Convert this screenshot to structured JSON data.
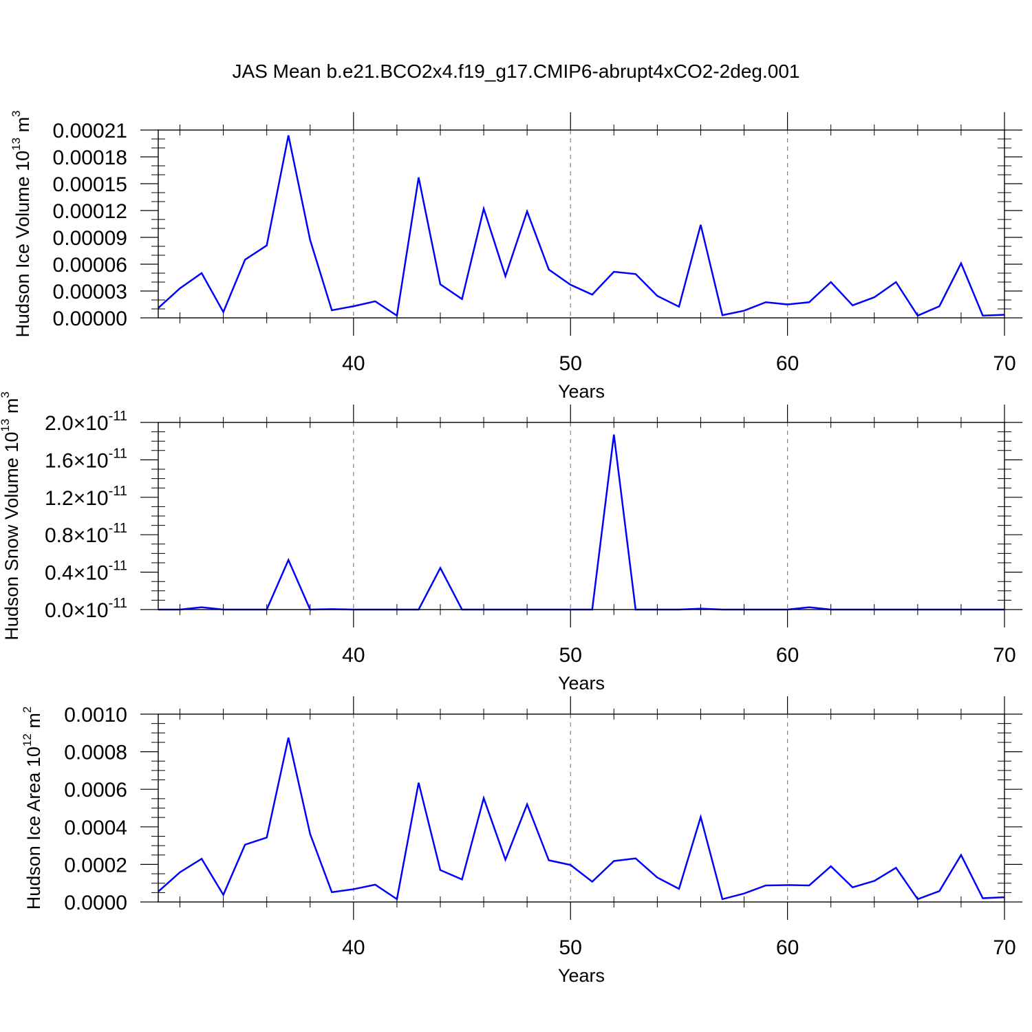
{
  "title": "JAS Mean b.e21.BCO2x4.f19_g17.CMIP6-abrupt4xCO2-2deg.001",
  "line_color": "#0000ff",
  "chart_data": [
    {
      "type": "line",
      "xlabel": "Years",
      "ylabel": "Hudson Ice Volume 10",
      "ylabel_exp": "13",
      "ylabel_unit": " m",
      "ylabel_unit_exp": "3",
      "xlim": [
        31,
        70
      ],
      "ylim": [
        0,
        0.00021
      ],
      "xticks": [
        40,
        50,
        60,
        70
      ],
      "yticks": [
        0,
        3e-05,
        6e-05,
        9e-05,
        0.00012,
        0.00015,
        0.00018,
        0.00021
      ],
      "ytick_labels": [
        "0.00000",
        "0.00003",
        "0.00006",
        "0.00009",
        "0.00012",
        "0.00015",
        "0.00018",
        "0.00021"
      ],
      "grid": "vertical dashed",
      "x": [
        31,
        32,
        33,
        34,
        35,
        36,
        37,
        38,
        39,
        40,
        41,
        42,
        43,
        44,
        45,
        46,
        47,
        48,
        49,
        50,
        51,
        52,
        53,
        54,
        55,
        56,
        57,
        58,
        59,
        60,
        61,
        62,
        63,
        64,
        65,
        66,
        67,
        68,
        69,
        70
      ],
      "series": [
        {
          "values": [
            1.1e-05,
            3.3e-05,
            5e-05,
            6.5e-06,
            6.5e-05,
            8.1e-05,
            0.000204,
            8.7e-05,
            8.5e-06,
            1.3e-05,
            1.85e-05,
            2.5e-06,
            0.000157,
            3.75e-05,
            2.1e-05,
            0.000122,
            4.65e-05,
            0.000119,
            5.4e-05,
            3.7e-05,
            2.6e-05,
            5.15e-05,
            4.9e-05,
            2.45e-05,
            1.25e-05,
            0.000104,
            3e-06,
            8e-06,
            1.75e-05,
            1.5e-05,
            1.75e-05,
            4e-05,
            1.4e-05,
            2.3e-05,
            4e-05,
            2.5e-06,
            1.3e-05,
            6.1e-05,
            2.5e-06,
            3.5e-06
          ]
        }
      ]
    },
    {
      "type": "line",
      "xlabel": "Years",
      "ylabel": "Hudson Snow Volume 10",
      "ylabel_exp": "13",
      "ylabel_unit": " m",
      "ylabel_unit_exp": "3",
      "xlim": [
        31,
        70
      ],
      "ylim": [
        0,
        2e-11
      ],
      "xticks": [
        40,
        50,
        60,
        70
      ],
      "yticks": [
        0,
        4e-12,
        8e-12,
        1.2e-11,
        1.6e-11,
        2e-11
      ],
      "ytick_labels": [
        "0.0",
        "0.4",
        "0.8",
        "1.2",
        "1.6",
        "2.0"
      ],
      "ytick_suffix": "×10",
      "ytick_exp": "-11",
      "grid": "vertical dashed",
      "x": [
        31,
        32,
        33,
        34,
        35,
        36,
        37,
        38,
        39,
        40,
        41,
        42,
        43,
        44,
        45,
        46,
        47,
        48,
        49,
        50,
        51,
        52,
        53,
        54,
        55,
        56,
        57,
        58,
        59,
        60,
        61,
        62,
        63,
        64,
        65,
        66,
        67,
        68,
        69,
        70
      ],
      "series": [
        {
          "values": [
            0,
            0,
            2.5e-13,
            0,
            0,
            0,
            5.3e-12,
            0,
            5e-14,
            0,
            0,
            0,
            0,
            4.45e-12,
            0,
            0,
            0,
            0,
            0,
            0,
            0,
            1.87e-11,
            0,
            0,
            0,
            1e-13,
            0,
            0,
            0,
            0,
            2.5e-13,
            0,
            0,
            0,
            0,
            0,
            0,
            0,
            0,
            0
          ]
        }
      ]
    },
    {
      "type": "line",
      "xlabel": "Years",
      "ylabel": "Hudson Ice Area 10",
      "ylabel_exp": "12",
      "ylabel_unit": " m",
      "ylabel_unit_exp": "2",
      "xlim": [
        31,
        70
      ],
      "ylim": [
        0,
        0.001
      ],
      "xticks": [
        40,
        50,
        60,
        70
      ],
      "yticks": [
        0,
        0.0002,
        0.0004,
        0.0006,
        0.0008,
        0.001
      ],
      "ytick_labels": [
        "0.0000",
        "0.0002",
        "0.0004",
        "0.0006",
        "0.0008",
        "0.0010"
      ],
      "grid": "vertical dashed",
      "x": [
        31,
        32,
        33,
        34,
        35,
        36,
        37,
        38,
        39,
        40,
        41,
        42,
        43,
        44,
        45,
        46,
        47,
        48,
        49,
        50,
        51,
        52,
        53,
        54,
        55,
        56,
        57,
        58,
        59,
        60,
        61,
        62,
        63,
        64,
        65,
        66,
        67,
        68,
        69,
        70
      ],
      "series": [
        {
          "values": [
            5.5e-05,
            0.000158,
            0.00023,
            3.8e-05,
            0.000305,
            0.000343,
            0.000875,
            0.000362,
            5.2e-05,
            6.8e-05,
            9.2e-05,
            1.5e-05,
            0.000635,
            0.00017,
            0.00012,
            0.000553,
            0.000225,
            0.00052,
            0.000222,
            0.000197,
            0.000108,
            0.000218,
            0.000232,
            0.00013,
            7e-05,
            0.000452,
            1.5e-05,
            4.5e-05,
            8.8e-05,
            9e-05,
            8.8e-05,
            0.00019,
            7.8e-05,
            0.000112,
            0.000182,
            1.5e-05,
            5.8e-05,
            0.00025,
            2e-05,
            2.5e-05
          ]
        }
      ]
    }
  ]
}
